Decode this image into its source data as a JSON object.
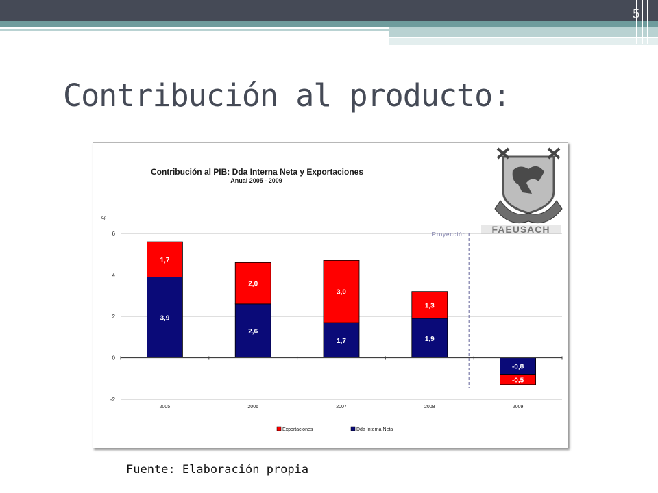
{
  "slide": {
    "page_number": "5",
    "title": "Contribución al producto:",
    "source": "Fuente: Elaboración propia"
  },
  "logo": {
    "text": "FAEUSACH"
  },
  "chart_data": {
    "type": "bar",
    "stacked": true,
    "title": "Contribución al PIB: Dda Interna Neta y Exportaciones",
    "subtitle": "Anual 2005 - 2009",
    "ylabel": "%",
    "xlabel": "",
    "ylim": [
      -2,
      6
    ],
    "yticks": [
      -2,
      0,
      2,
      4,
      6
    ],
    "categories": [
      "2005",
      "2006",
      "2007",
      "2008",
      "2009"
    ],
    "series": [
      {
        "name": "Dda Interna Neta",
        "color": "#0a0a78",
        "values": [
          3.9,
          2.6,
          1.7,
          1.9,
          -0.8
        ],
        "labels": [
          "3,9",
          "2,6",
          "1,7",
          "1,9",
          "-0,8"
        ]
      },
      {
        "name": "Exportaciones",
        "color": "#ff0000",
        "values": [
          1.7,
          2.0,
          3.0,
          1.3,
          -0.5
        ],
        "labels": [
          "1,7",
          "2,0",
          "3,0",
          "1,3",
          "-0,5"
        ]
      }
    ],
    "legend_order": [
      "Exportaciones",
      "Dda Interna Neta"
    ],
    "legend_position": "bottom",
    "annotation": {
      "text": "Proyección",
      "after_category": "2008"
    },
    "grid": true
  }
}
